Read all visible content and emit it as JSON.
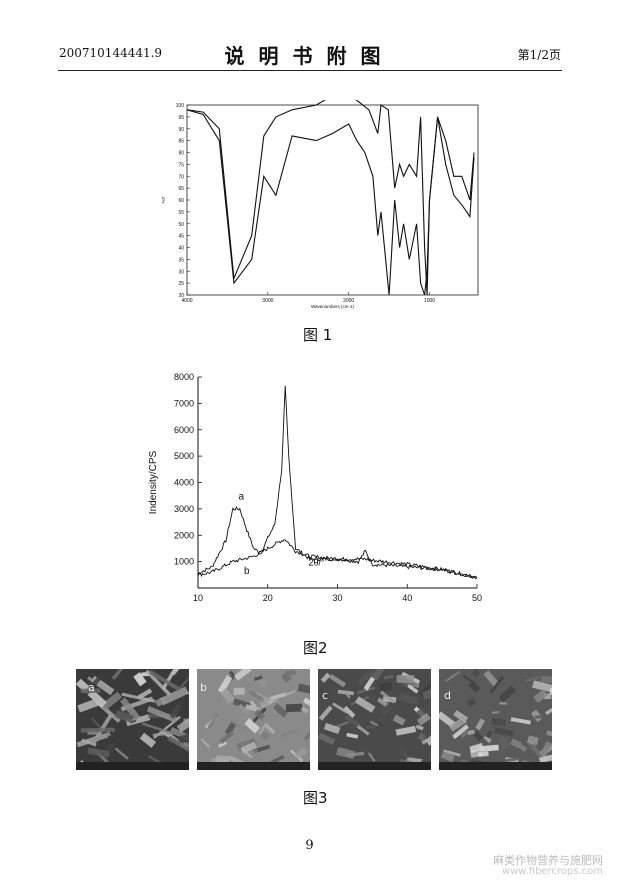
{
  "header": {
    "doc_number": "200710144441.9",
    "title": "说明书附图",
    "page_label": "第1/2页"
  },
  "figures": {
    "fig1": {
      "caption": "图 1",
      "xlabel": "Wavenumbers (cm-1)",
      "ylabel": "%T",
      "x_ticks": [
        "4000",
        "3000",
        "2000",
        "1000"
      ],
      "y_ticks": [
        "100",
        "95",
        "90",
        "85",
        "80",
        "75",
        "70",
        "65",
        "60",
        "55",
        "50",
        "45",
        "40",
        "35",
        "30",
        "25",
        "20"
      ]
    },
    "fig2": {
      "caption": "图2",
      "ylabel": "Indensity/CPS",
      "annotation": "2θ/°",
      "label_a": "a",
      "label_b": "b",
      "x_ticks": [
        "10",
        "20",
        "30",
        "40",
        "50"
      ],
      "y_ticks": [
        "1000",
        "2000",
        "3000",
        "4000",
        "5000",
        "6000",
        "7000",
        "8000"
      ]
    },
    "fig3": {
      "caption": "图3",
      "panels": [
        "a",
        "b",
        "c",
        "d"
      ]
    }
  },
  "chart_data": [
    {
      "type": "line",
      "title": "",
      "xlabel": "Wavenumbers (cm-1)",
      "ylabel": "%T",
      "xlim": [
        4000,
        400
      ],
      "ylim": [
        20,
        100
      ],
      "series": [
        {
          "x": [
            4000,
            3800,
            3600,
            3420,
            3200,
            3050,
            2900,
            2700,
            2400,
            2200,
            2000,
            1900,
            1750,
            1640,
            1600,
            1510,
            1430,
            1370,
            1320,
            1250,
            1160,
            1110,
            1060,
            1030,
            1000,
            900,
            800,
            700,
            600,
            500,
            450
          ],
          "values": [
            98,
            97,
            90,
            27,
            45,
            87,
            95,
            98,
            100,
            104,
            104,
            102,
            98,
            88,
            100,
            98,
            65,
            75,
            70,
            75,
            70,
            95,
            40,
            20,
            60,
            95,
            85,
            70,
            70,
            60,
            80
          ]
        },
        {
          "x": [
            4000,
            3800,
            3600,
            3420,
            3200,
            3050,
            2900,
            2700,
            2400,
            2200,
            2000,
            1900,
            1800,
            1700,
            1640,
            1600,
            1500,
            1430,
            1370,
            1320,
            1250,
            1160,
            1110,
            1060,
            1030,
            1000,
            900,
            800,
            700,
            600,
            500,
            450
          ],
          "values": [
            98,
            96,
            85,
            25,
            35,
            70,
            62,
            87,
            85,
            88,
            92,
            85,
            80,
            70,
            45,
            55,
            20,
            60,
            40,
            50,
            35,
            50,
            25,
            20,
            30,
            60,
            95,
            75,
            62,
            58,
            53,
            78
          ]
        }
      ]
    },
    {
      "type": "line",
      "title": "",
      "xlabel": "2θ/°",
      "ylabel": "Indensity/CPS",
      "xlim": [
        10,
        50
      ],
      "ylim": [
        0,
        8000
      ],
      "series": [
        {
          "name": "a",
          "x": [
            10,
            12,
            14,
            15,
            16,
            17,
            18,
            19,
            20,
            21,
            22,
            22.5,
            23,
            24,
            26,
            30,
            33,
            34,
            35,
            40,
            45,
            50
          ],
          "values": [
            550,
            800,
            1800,
            3000,
            3000,
            2200,
            1500,
            1300,
            1900,
            2400,
            4500,
            7600,
            5000,
            1500,
            1100,
            1100,
            1000,
            1400,
            900,
            800,
            700,
            400
          ]
        },
        {
          "name": "b",
          "x": [
            10,
            12,
            15,
            18,
            20,
            21,
            22,
            22.5,
            23,
            24,
            26,
            30,
            34,
            35,
            40,
            45,
            50
          ],
          "values": [
            500,
            600,
            1000,
            1200,
            1500,
            1650,
            1800,
            1850,
            1700,
            1400,
            1200,
            1100,
            1100,
            1050,
            900,
            700,
            400
          ]
        }
      ]
    }
  ],
  "page_number": "9",
  "watermark": {
    "line1": "麻类作物营养与施肥网",
    "line2": "www.fibercrops.com"
  }
}
